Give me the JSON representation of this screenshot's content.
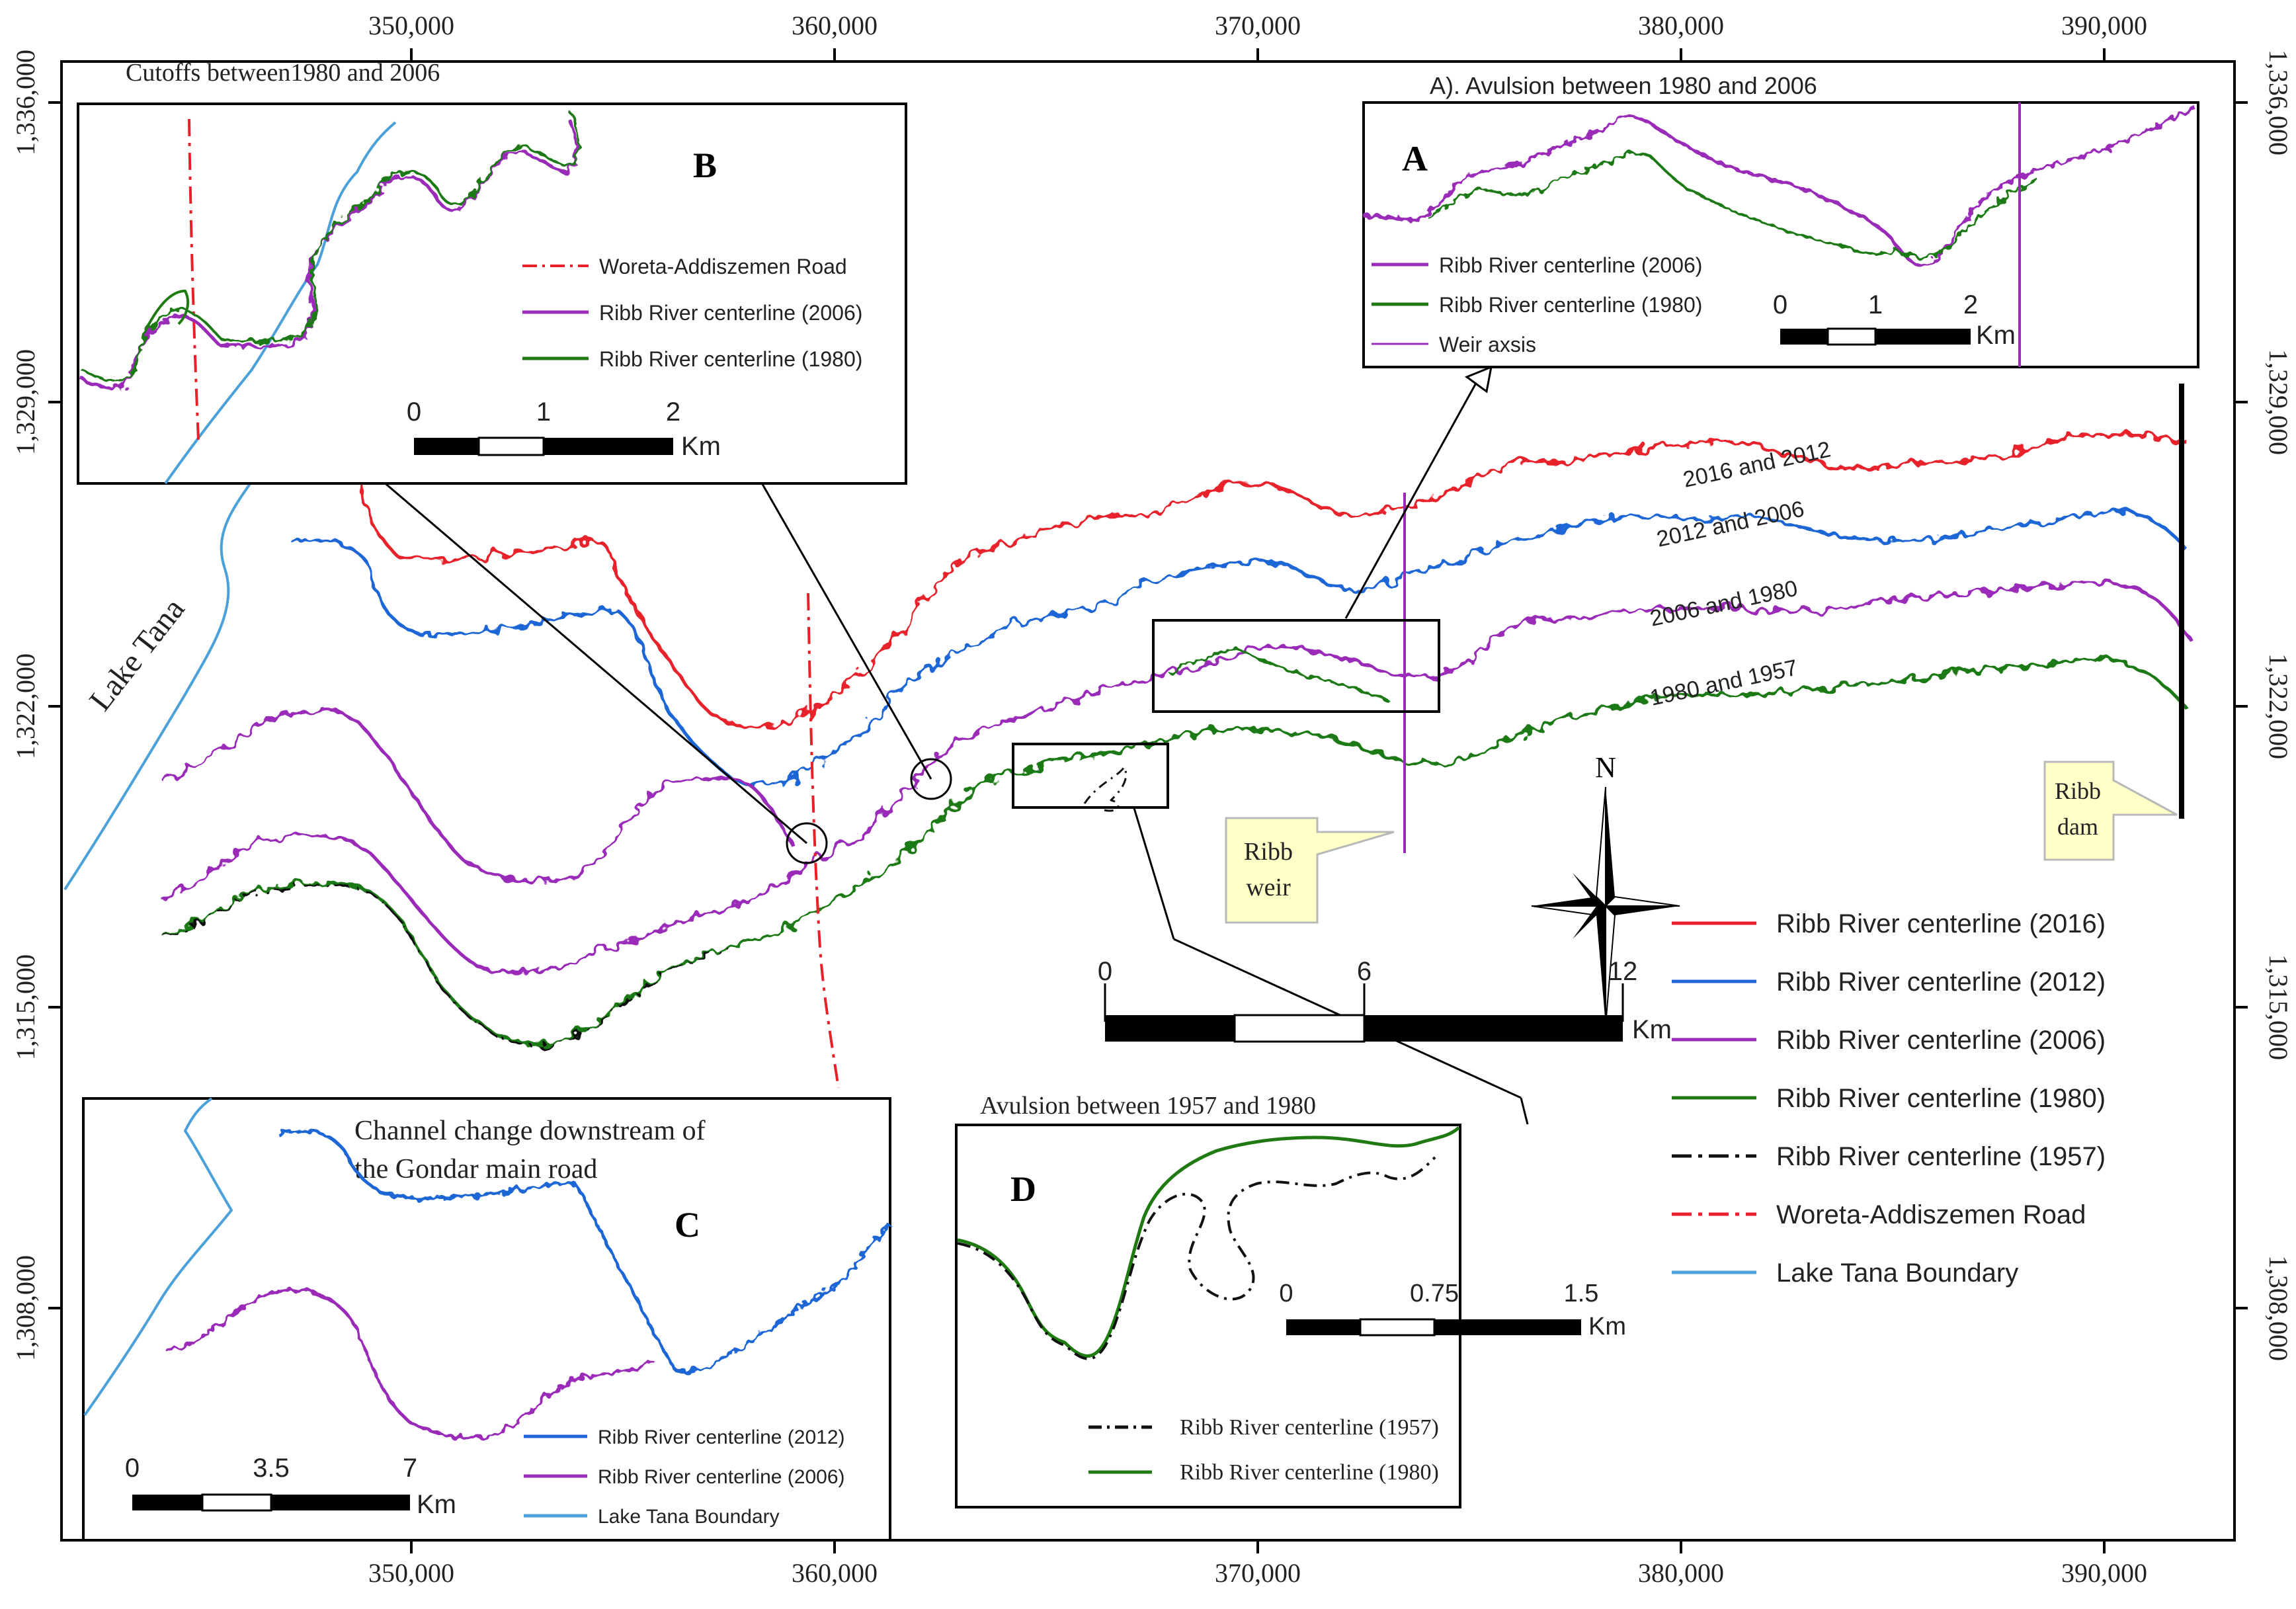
{
  "axes": {
    "x_ticks": [
      "350,000",
      "360,000",
      "370,000",
      "380,000",
      "390,000"
    ],
    "y_ticks": [
      "1,336,000",
      "1,329,000",
      "1,322,000",
      "1,315,000",
      "1,308,000"
    ]
  },
  "map_labels": {
    "lake": "Lake Tana",
    "pair_2016_2012": "2016 and 2012",
    "pair_2012_2006": "2012 and 2006",
    "pair_2006_1980": "2006 and 1980",
    "pair_1980_1957": "1980 and 1957",
    "weir_line1": "Ribb",
    "weir_line2": "weir",
    "dam_line1": "Ribb",
    "dam_line2": "dam",
    "north": "N"
  },
  "main_scale": {
    "labels": [
      "0",
      "6",
      "12"
    ],
    "unit": "Km"
  },
  "legend": {
    "items": [
      {
        "label": "Ribb River centerline (2016)",
        "color": "#e8202a",
        "dash": "solid"
      },
      {
        "label": "Ribb River centerline (2012)",
        "color": "#1f66d6",
        "dash": "solid"
      },
      {
        "label": "Ribb River centerline (2006)",
        "color": "#9a2ab8",
        "dash": "solid"
      },
      {
        "label": "Ribb River centerline (1980)",
        "color": "#1f7a12",
        "dash": "solid"
      },
      {
        "label": "Ribb River centerline (1957)",
        "color": "#111111",
        "dash": "dashdot"
      },
      {
        "label": "Woreta-Addiszemen Road",
        "color": "#e8202a",
        "dash": "dashdot"
      },
      {
        "label": "Lake Tana Boundary",
        "color": "#4aa0d8",
        "dash": "solid"
      }
    ]
  },
  "inset_a": {
    "title": "A). Avulsion between 1980 and 2006",
    "letter": "A",
    "legend": [
      "Ribb River centerline (2006)",
      "Ribb River centerline (1980)",
      "Weir axsis"
    ],
    "scale": [
      "0",
      "1",
      "2"
    ],
    "unit": "Km"
  },
  "inset_b": {
    "title": "Cutoffs between1980 and 2006",
    "letter": "B",
    "legend": [
      "Woreta-Addiszemen Road",
      "Ribb River centerline (2006)",
      "Ribb River centerline (1980)"
    ],
    "scale": [
      "0",
      "1",
      "2"
    ],
    "unit": "Km"
  },
  "inset_c": {
    "title_line1": "Channel change downstream of",
    "title_line2": "the Gondar main road",
    "letter": "C",
    "legend": [
      "Ribb River centerline (2012)",
      "Ribb River centerline (2006)",
      "Lake Tana Boundary"
    ],
    "scale": [
      "0",
      "3.5",
      "7"
    ],
    "unit": "Km"
  },
  "inset_d": {
    "title": "Avulsion between 1957 and 1980",
    "letter": "D",
    "legend": [
      "Ribb River centerline (1957)",
      "Ribb River centerline (1980)"
    ],
    "scale": [
      "0",
      "0.75",
      "1.5"
    ],
    "unit": "Km"
  }
}
